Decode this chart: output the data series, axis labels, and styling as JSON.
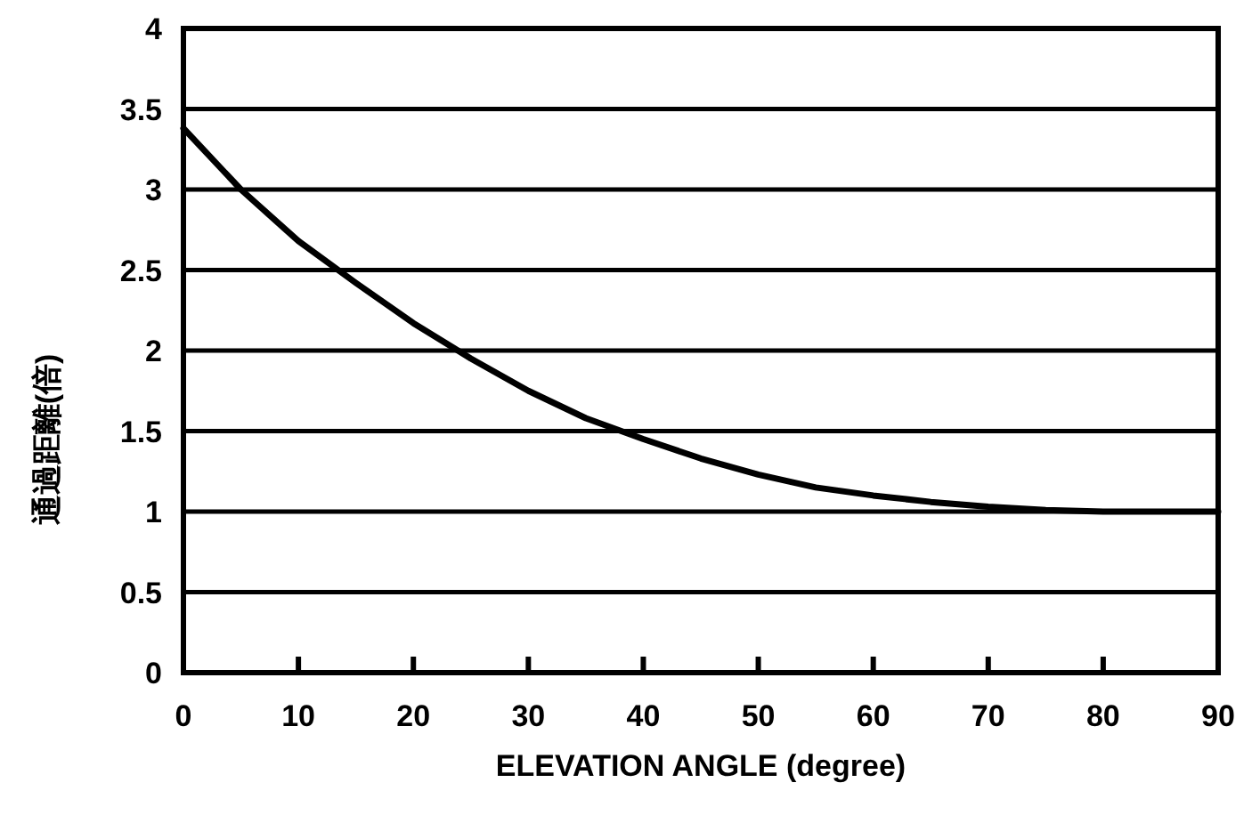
{
  "chart_data": {
    "type": "line",
    "xlabel": "ELEVATION ANGLE (degree)",
    "ylabel": "通過距離(倍)",
    "x": [
      0,
      5,
      10,
      15,
      20,
      25,
      30,
      35,
      40,
      45,
      50,
      55,
      60,
      65,
      70,
      75,
      80,
      85,
      90
    ],
    "series": [
      {
        "color": "#000000",
        "values": [
          3.38,
          3.0,
          2.68,
          2.42,
          2.17,
          1.95,
          1.75,
          1.58,
          1.45,
          1.33,
          1.23,
          1.15,
          1.1,
          1.06,
          1.03,
          1.01,
          1.0,
          1.0,
          1.0
        ]
      }
    ],
    "xlim": [
      0,
      90
    ],
    "xticks": [
      0,
      10,
      20,
      30,
      40,
      50,
      60,
      70,
      80,
      90
    ],
    "ylim": [
      0,
      4
    ],
    "yticks": [
      0,
      0.5,
      1,
      1.5,
      2,
      2.5,
      3,
      3.5,
      4
    ],
    "grid": "y",
    "marker": "none",
    "line_style": "solid"
  }
}
